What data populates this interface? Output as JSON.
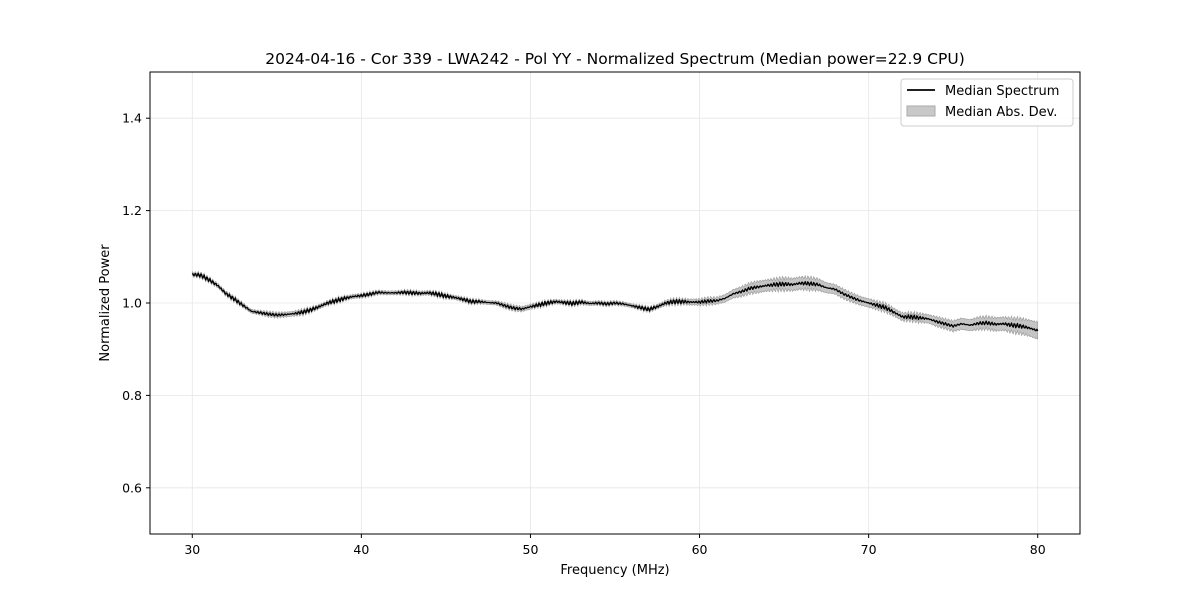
{
  "chart_data": {
    "type": "line",
    "title": "2024-04-16 - Cor 339 - LWA242 - Pol YY - Normalized Spectrum (Median power=22.9 CPU)",
    "xlabel": "Frequency (MHz)",
    "ylabel": "Normalized Power",
    "xlim": [
      27.5,
      82.5
    ],
    "ylim": [
      0.5,
      1.5
    ],
    "xticks": [
      30,
      40,
      50,
      60,
      70,
      80
    ],
    "yticks": [
      0.6,
      0.8,
      1.0,
      1.2,
      1.4
    ],
    "xtick_labels": [
      "30",
      "40",
      "50",
      "60",
      "70",
      "80"
    ],
    "ytick_labels": [
      "0.6",
      "0.8",
      "1.0",
      "1.2",
      "1.4"
    ],
    "grid": true,
    "legend_position": "top-right",
    "colors": {
      "line": "#000000",
      "band_fill": "#bfbfbf",
      "band_edge": "#999999",
      "grid": "#e6e6e6"
    },
    "series": [
      {
        "name": "Median Spectrum",
        "kind": "line",
        "x": [
          30,
          30.5,
          31,
          31.5,
          32,
          32.5,
          33,
          33.5,
          34,
          34.5,
          35,
          35.5,
          36,
          36.5,
          37,
          37.5,
          38,
          38.5,
          39,
          39.5,
          40,
          40.5,
          41,
          41.5,
          42,
          42.5,
          43,
          43.5,
          44,
          44.5,
          45,
          45.5,
          46,
          46.5,
          47,
          47.5,
          48,
          48.5,
          49,
          49.5,
          50,
          50.5,
          51,
          51.5,
          52,
          52.5,
          53,
          53.5,
          54,
          54.5,
          55,
          55.5,
          56,
          56.5,
          57,
          57.5,
          58,
          58.5,
          59,
          59.5,
          60,
          60.5,
          61,
          61.5,
          62,
          62.5,
          63,
          63.5,
          64,
          64.5,
          65,
          65.5,
          66,
          66.5,
          67,
          67.5,
          68,
          68.5,
          69,
          69.5,
          70,
          70.5,
          71,
          71.5,
          72,
          72.5,
          73,
          73.5,
          74,
          74.5,
          75,
          75.5,
          76,
          76.5,
          77,
          77.5,
          78,
          78.5,
          79,
          79.5,
          80
        ],
        "y": [
          1.062,
          1.06,
          1.05,
          1.038,
          1.02,
          1.008,
          0.995,
          0.982,
          0.979,
          0.976,
          0.974,
          0.975,
          0.977,
          0.98,
          0.985,
          0.992,
          1.0,
          1.005,
          1.01,
          1.014,
          1.016,
          1.019,
          1.023,
          1.022,
          1.022,
          1.023,
          1.022,
          1.021,
          1.022,
          1.019,
          1.015,
          1.012,
          1.008,
          1.003,
          1.003,
          1.001,
          1.0,
          0.994,
          0.989,
          0.987,
          0.992,
          0.996,
          1.0,
          1.003,
          1.001,
          0.999,
          1.002,
          0.999,
          1.0,
          0.998,
          1.0,
          0.998,
          0.994,
          0.99,
          0.986,
          0.992,
          1.0,
          1.003,
          1.003,
          1.002,
          1.002,
          1.004,
          1.005,
          1.01,
          1.02,
          1.025,
          1.032,
          1.035,
          1.038,
          1.04,
          1.041,
          1.04,
          1.043,
          1.042,
          1.04,
          1.033,
          1.03,
          1.02,
          1.012,
          1.005,
          1.0,
          0.995,
          0.99,
          0.98,
          0.97,
          0.97,
          0.968,
          0.966,
          0.96,
          0.955,
          0.95,
          0.955,
          0.952,
          0.956,
          0.957,
          0.954,
          0.955,
          0.952,
          0.95,
          0.946,
          0.94
        ],
        "values_note": "resampled at 0.5 MHz from the plotted curve"
      },
      {
        "name": "Median Abs. Dev.",
        "kind": "band",
        "half_width": [
          0.004,
          0.004,
          0.004,
          0.004,
          0.004,
          0.004,
          0.004,
          0.004,
          0.004,
          0.005,
          0.005,
          0.005,
          0.005,
          0.005,
          0.004,
          0.004,
          0.004,
          0.004,
          0.004,
          0.004,
          0.004,
          0.004,
          0.004,
          0.004,
          0.004,
          0.004,
          0.004,
          0.004,
          0.004,
          0.004,
          0.004,
          0.004,
          0.004,
          0.004,
          0.004,
          0.004,
          0.004,
          0.005,
          0.005,
          0.005,
          0.005,
          0.004,
          0.004,
          0.004,
          0.004,
          0.004,
          0.004,
          0.004,
          0.004,
          0.004,
          0.004,
          0.004,
          0.004,
          0.004,
          0.004,
          0.004,
          0.005,
          0.005,
          0.005,
          0.006,
          0.006,
          0.007,
          0.007,
          0.008,
          0.009,
          0.01,
          0.011,
          0.012,
          0.012,
          0.012,
          0.013,
          0.013,
          0.013,
          0.013,
          0.012,
          0.011,
          0.01,
          0.01,
          0.009,
          0.009,
          0.009,
          0.008,
          0.008,
          0.008,
          0.008,
          0.008,
          0.009,
          0.009,
          0.01,
          0.01,
          0.011,
          0.012,
          0.012,
          0.013,
          0.013,
          0.014,
          0.014,
          0.015,
          0.016,
          0.017,
          0.018
        ]
      }
    ]
  }
}
